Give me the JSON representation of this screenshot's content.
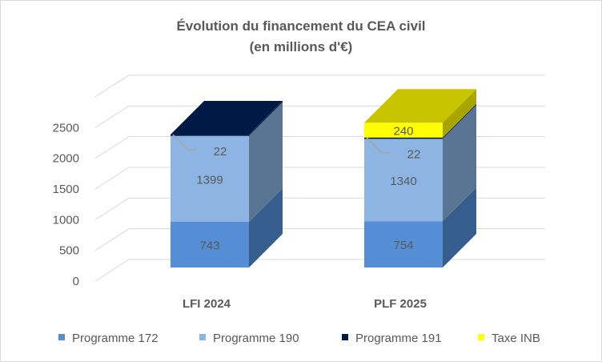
{
  "chart_data": {
    "type": "bar",
    "stacked": true,
    "three_d": true,
    "title": "Évolution du financement du CEA civil",
    "subtitle": "(en millions d'€)",
    "categories": [
      "LFI 2024",
      "PLF 2025"
    ],
    "series": [
      {
        "name": "Programme 172",
        "values": [
          743,
          754
        ],
        "color": "#558ED5",
        "side": "#355D8E"
      },
      {
        "name": "Programme 190",
        "values": [
          1399,
          1340
        ],
        "color": "#8DB4E2",
        "side": "#5A7494"
      },
      {
        "name": "Programme 191",
        "values": [
          22,
          22
        ],
        "color": "#001A45",
        "side": "#0F2A50"
      },
      {
        "name": "Taxe INB",
        "values": [
          null,
          240
        ],
        "color": "#FFFF00",
        "side": "#A8A400"
      }
    ],
    "yticks": [
      "0",
      "500",
      "1000",
      "1500",
      "2000",
      "2500"
    ],
    "ylim": [
      0,
      3000
    ],
    "grid": true,
    "legend": "bottom"
  }
}
